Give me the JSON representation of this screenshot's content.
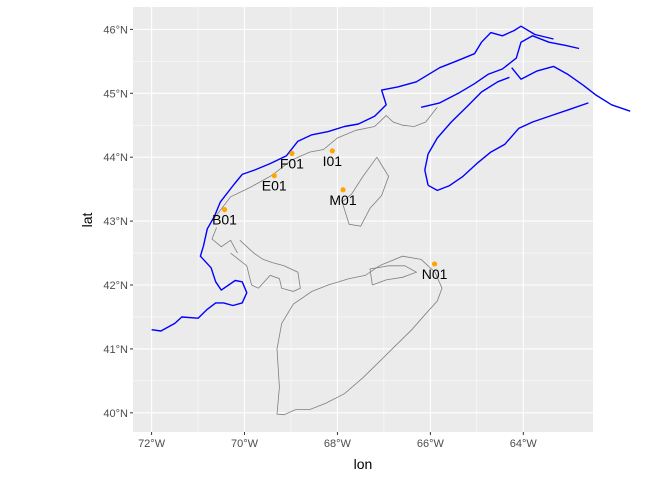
{
  "chart_data": {
    "type": "scatter",
    "title": "",
    "xlabel": "lon",
    "ylabel": "lat",
    "xlim": [
      -72.4,
      -62.5
    ],
    "ylim": [
      39.7,
      46.35
    ],
    "grid": true,
    "x_major_ticks": [
      -72,
      -70,
      -68,
      -66,
      -64
    ],
    "x_tick_labels": [
      "72°W",
      "70°W",
      "68°W",
      "66°W",
      "64°W"
    ],
    "y_major_ticks": [
      40,
      41,
      42,
      43,
      44,
      45,
      46
    ],
    "y_tick_labels": [
      "40°N",
      "41°N",
      "42°N",
      "43°N",
      "44°N",
      "45°N",
      "46°N"
    ],
    "point_color": "#FFA500",
    "coastline_color": "#0000FF",
    "boundary_color": "#7f7f7f",
    "panel_color": "#EBEBEB",
    "points": [
      {
        "label": "B01",
        "lon": -70.43,
        "lat": 43.18
      },
      {
        "label": "E01",
        "lon": -69.36,
        "lat": 43.71
      },
      {
        "label": "F01",
        "lon": -68.98,
        "lat": 44.06
      },
      {
        "label": "I01",
        "lon": -68.11,
        "lat": 44.1
      },
      {
        "label": "M01",
        "lon": -67.88,
        "lat": 43.49
      },
      {
        "label": "N01",
        "lon": -65.91,
        "lat": 42.33
      }
    ],
    "coastline": [
      [
        [
          -72.0,
          41.3
        ],
        [
          -71.8,
          41.28
        ],
        [
          -71.5,
          41.4
        ],
        [
          -71.35,
          41.5
        ],
        [
          -71.0,
          41.48
        ],
        [
          -70.8,
          41.62
        ],
        [
          -70.62,
          41.72
        ],
        [
          -70.45,
          41.72
        ],
        [
          -70.25,
          41.68
        ],
        [
          -70.05,
          41.72
        ],
        [
          -69.95,
          41.88
        ],
        [
          -70.05,
          42.05
        ],
        [
          -70.2,
          42.07
        ],
        [
          -70.5,
          41.92
        ],
        [
          -70.62,
          42.05
        ],
        [
          -70.72,
          42.27
        ],
        [
          -70.95,
          42.45
        ],
        [
          -70.88,
          42.62
        ],
        [
          -70.8,
          42.88
        ],
        [
          -70.65,
          43.07
        ],
        [
          -70.52,
          43.3
        ],
        [
          -70.22,
          43.58
        ],
        [
          -70.05,
          43.73
        ],
        [
          -69.78,
          43.8
        ],
        [
          -69.45,
          43.9
        ],
        [
          -69.1,
          44.02
        ],
        [
          -68.85,
          44.25
        ],
        [
          -68.55,
          44.35
        ],
        [
          -68.2,
          44.4
        ],
        [
          -67.85,
          44.48
        ],
        [
          -67.55,
          44.52
        ],
        [
          -67.2,
          44.64
        ],
        [
          -66.95,
          44.82
        ],
        [
          -67.05,
          45.05
        ],
        [
          -66.7,
          45.1
        ],
        [
          -66.3,
          45.18
        ],
        [
          -65.8,
          45.4
        ],
        [
          -65.45,
          45.5
        ],
        [
          -65.05,
          45.62
        ],
        [
          -64.9,
          45.8
        ],
        [
          -64.7,
          45.95
        ],
        [
          -64.45,
          45.9
        ],
        [
          -64.2,
          45.98
        ],
        [
          -64.05,
          46.05
        ],
        [
          -63.75,
          45.92
        ],
        [
          -63.35,
          45.85
        ]
      ],
      [
        [
          -66.2,
          44.78
        ],
        [
          -65.8,
          44.85
        ],
        [
          -65.4,
          45.0
        ],
        [
          -65.05,
          45.15
        ],
        [
          -64.75,
          45.3
        ],
        [
          -64.45,
          45.38
        ],
        [
          -64.15,
          45.55
        ],
        [
          -64.05,
          45.8
        ],
        [
          -63.8,
          45.9
        ],
        [
          -63.45,
          45.8
        ],
        [
          -63.1,
          45.75
        ],
        [
          -62.8,
          45.7
        ]
      ],
      [
        [
          -64.25,
          45.4
        ],
        [
          -64.05,
          45.22
        ],
        [
          -63.7,
          45.35
        ],
        [
          -63.35,
          45.42
        ],
        [
          -63.05,
          45.3
        ],
        [
          -62.7,
          45.12
        ],
        [
          -62.45,
          44.98
        ],
        [
          -62.1,
          44.82
        ],
        [
          -61.7,
          44.72
        ]
      ],
      [
        [
          -66.05,
          43.56
        ],
        [
          -65.85,
          43.48
        ],
        [
          -65.6,
          43.55
        ],
        [
          -65.3,
          43.7
        ],
        [
          -65.0,
          43.9
        ],
        [
          -64.7,
          44.08
        ],
        [
          -64.4,
          44.2
        ],
        [
          -64.1,
          44.45
        ],
        [
          -63.8,
          44.55
        ],
        [
          -63.4,
          44.65
        ],
        [
          -63.0,
          44.75
        ],
        [
          -62.6,
          44.85
        ]
      ],
      [
        [
          -66.05,
          43.56
        ],
        [
          -66.12,
          43.8
        ],
        [
          -66.05,
          44.05
        ],
        [
          -65.85,
          44.3
        ],
        [
          -65.55,
          44.55
        ],
        [
          -65.2,
          44.8
        ],
        [
          -64.9,
          45.02
        ],
        [
          -64.55,
          45.18
        ],
        [
          -64.3,
          45.25
        ]
      ]
    ],
    "boundaries": [
      [
        [
          -70.7,
          43.0
        ],
        [
          -70.3,
          43.38
        ],
        [
          -69.9,
          43.52
        ],
        [
          -69.4,
          43.72
        ],
        [
          -69.0,
          43.95
        ],
        [
          -68.6,
          44.08
        ],
        [
          -68.3,
          44.12
        ],
        [
          -68.0,
          44.3
        ],
        [
          -67.6,
          44.42
        ],
        [
          -67.2,
          44.48
        ],
        [
          -66.95,
          44.65
        ],
        [
          -66.8,
          44.55
        ],
        [
          -66.6,
          44.5
        ],
        [
          -66.35,
          44.48
        ],
        [
          -66.1,
          44.55
        ],
        [
          -65.85,
          44.78
        ]
      ],
      [
        [
          -70.6,
          42.9
        ],
        [
          -70.7,
          42.72
        ],
        [
          -70.5,
          42.6
        ],
        [
          -70.3,
          42.7
        ],
        [
          -70.15,
          42.5
        ]
      ],
      [
        [
          -67.15,
          44.0
        ],
        [
          -67.45,
          43.7
        ],
        [
          -67.7,
          43.42
        ],
        [
          -67.9,
          43.3
        ],
        [
          -67.75,
          42.95
        ],
        [
          -67.5,
          42.92
        ],
        [
          -67.3,
          43.2
        ],
        [
          -67.05,
          43.4
        ],
        [
          -66.9,
          43.7
        ],
        [
          -67.15,
          44.0
        ]
      ],
      [
        [
          -70.3,
          42.5
        ],
        [
          -69.95,
          42.3
        ],
        [
          -69.85,
          42.0
        ],
        [
          -69.7,
          41.95
        ],
        [
          -69.45,
          42.15
        ],
        [
          -69.25,
          42.1
        ],
        [
          -69.2,
          41.95
        ],
        [
          -68.95,
          41.9
        ],
        [
          -68.8,
          41.95
        ],
        [
          -68.85,
          42.2
        ],
        [
          -69.15,
          42.3
        ],
        [
          -69.4,
          42.35
        ],
        [
          -69.6,
          42.4
        ],
        [
          -69.8,
          42.5
        ],
        [
          -70.1,
          42.7
        ]
      ],
      [
        [
          -67.75,
          42.1
        ],
        [
          -67.4,
          42.15
        ],
        [
          -67.1,
          42.3
        ],
        [
          -66.6,
          42.45
        ],
        [
          -66.2,
          42.4
        ],
        [
          -65.9,
          42.2
        ],
        [
          -65.75,
          41.95
        ],
        [
          -65.85,
          41.75
        ],
        [
          -66.1,
          41.55
        ],
        [
          -66.4,
          41.3
        ],
        [
          -66.75,
          41.05
        ],
        [
          -67.1,
          40.8
        ],
        [
          -67.45,
          40.55
        ],
        [
          -67.85,
          40.3
        ],
        [
          -68.25,
          40.15
        ],
        [
          -68.6,
          40.05
        ],
        [
          -68.9,
          40.05
        ],
        [
          -69.15,
          39.97
        ],
        [
          -69.3,
          39.98
        ],
        [
          -69.25,
          40.4
        ],
        [
          -69.3,
          41.0
        ],
        [
          -69.2,
          41.4
        ],
        [
          -68.95,
          41.7
        ],
        [
          -68.55,
          41.9
        ],
        [
          -68.2,
          42.0
        ],
        [
          -67.75,
          42.1
        ]
      ],
      [
        [
          -67.25,
          42.0
        ],
        [
          -67.3,
          42.25
        ],
        [
          -66.9,
          42.3
        ],
        [
          -66.55,
          42.3
        ],
        [
          -66.3,
          42.2
        ],
        [
          -66.6,
          42.12
        ],
        [
          -66.95,
          42.08
        ],
        [
          -67.25,
          42.0
        ]
      ]
    ]
  }
}
